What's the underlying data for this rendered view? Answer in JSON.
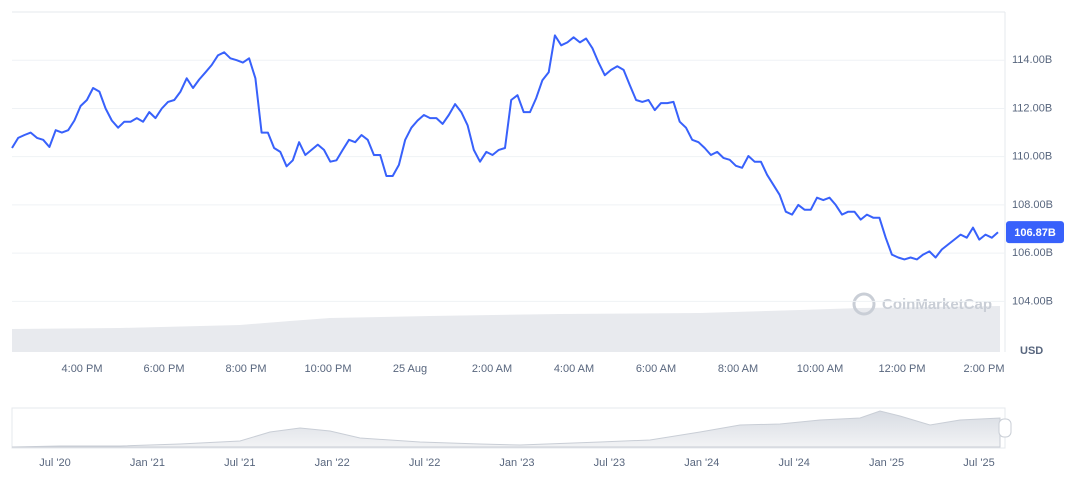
{
  "chart_data": {
    "type": "line",
    "series": [
      {
        "name": "Market Cap",
        "color": "#3861fb",
        "values": [
          110.36,
          110.78,
          110.9,
          111.0,
          110.78,
          110.7,
          110.4,
          111.1,
          111.0,
          111.1,
          111.5,
          112.1,
          112.35,
          112.85,
          112.7,
          112.0,
          111.5,
          111.2,
          111.45,
          111.45,
          111.6,
          111.45,
          111.85,
          111.6,
          112.0,
          112.27,
          112.35,
          112.7,
          113.25,
          112.85,
          113.2,
          113.5,
          113.8,
          114.2,
          114.33,
          114.08,
          114.0,
          113.9,
          114.08,
          113.25,
          111.0,
          111.0,
          110.36,
          110.2,
          109.6,
          109.85,
          110.6,
          110.07,
          110.28,
          110.5,
          110.28,
          109.79,
          109.85,
          110.28,
          110.7,
          110.6,
          110.9,
          110.7,
          110.07,
          110.07,
          109.2,
          109.2,
          109.66,
          110.7,
          111.2,
          111.5,
          111.73,
          111.6,
          111.6,
          111.36,
          111.73,
          112.18,
          111.85,
          111.3,
          110.28,
          109.79,
          110.2,
          110.07,
          110.28,
          110.36,
          112.35,
          112.55,
          111.85,
          111.85,
          112.43,
          113.17,
          113.5,
          115.03,
          114.62,
          114.74,
          114.95,
          114.74,
          114.9,
          114.5,
          113.9,
          113.38,
          113.6,
          113.75,
          113.6,
          112.97,
          112.35,
          112.27,
          112.35,
          111.93,
          112.22,
          112.22,
          112.27,
          111.45,
          111.2,
          110.7,
          110.6,
          110.36,
          110.07,
          110.2,
          109.95,
          109.87,
          109.62,
          109.54,
          110.03,
          109.79,
          109.79,
          109.25,
          108.84,
          108.42,
          107.72,
          107.6,
          108.0,
          107.8,
          107.8,
          108.3,
          108.2,
          108.3,
          108.0,
          107.6,
          107.72,
          107.72,
          107.39,
          107.6,
          107.47,
          107.47,
          106.64,
          105.94,
          105.82,
          105.74,
          105.82,
          105.74,
          105.94,
          106.07,
          105.82,
          106.15,
          106.36,
          106.56,
          106.77,
          106.64,
          107.06,
          106.56,
          106.77,
          106.64,
          106.87
        ]
      }
    ],
    "price_marker": {
      "value": 106.87,
      "label": "106.87B"
    },
    "ylim": [
      101.9,
      116
    ],
    "yticks": [
      {
        "value": 104,
        "label": "104.00B"
      },
      {
        "value": 106,
        "label": "106.00B"
      },
      {
        "value": 108,
        "label": "108.00B"
      },
      {
        "value": 110,
        "label": "110.00B"
      },
      {
        "value": 112,
        "label": "112.00B"
      },
      {
        "value": 114,
        "label": "114.00B"
      }
    ],
    "x_labels": [
      "4:00 PM",
      "6:00 PM",
      "8:00 PM",
      "10:00 PM",
      "25 Aug",
      "2:00 AM",
      "4:00 AM",
      "6:00 AM",
      "8:00 AM",
      "10:00 AM",
      "12:00 PM",
      "2:00 PM"
    ],
    "y_unit": "USD",
    "watermark": "CoinMarketCap",
    "navigator_labels": [
      "Jul '20",
      "Jan '21",
      "Jul '21",
      "Jan '22",
      "Jul '22",
      "Jan '23",
      "Jul '23",
      "Jan '24",
      "Jul '24",
      "Jan '25",
      "Jul '25"
    ],
    "grid": true
  }
}
